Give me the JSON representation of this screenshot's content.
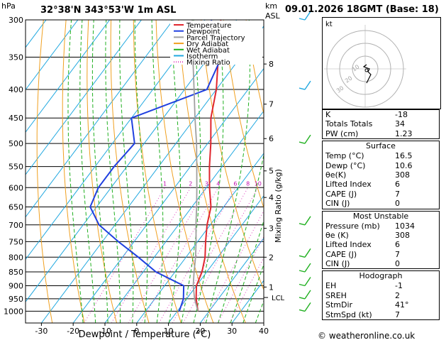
{
  "header": {
    "pressure_unit": "hPa",
    "location": "32°38'N  343°53'W  1m  ASL",
    "height_unit_1": "km",
    "height_unit_2": "ASL",
    "datetime": "09.01.2026 18GMT (Base: 18)"
  },
  "legend": [
    {
      "label": "Temperature",
      "color": "#e0262e",
      "style": "solid"
    },
    {
      "label": "Dewpoint",
      "color": "#2040e0",
      "style": "solid"
    },
    {
      "label": "Parcel Trajectory",
      "color": "#a0a0a0",
      "style": "solid"
    },
    {
      "label": "Dry Adiabat",
      "color": "#f0a020",
      "style": "solid"
    },
    {
      "label": "Wet Adiabat",
      "color": "#20b020",
      "style": "solid"
    },
    {
      "label": "Isotherm",
      "color": "#20a8e0",
      "style": "solid"
    },
    {
      "label": "Mixing Ratio",
      "color": "#e040c0",
      "style": "dotted"
    }
  ],
  "chart_data": {
    "type": "line",
    "title": "",
    "xlabel": "Dewpoint / Temperature (°C)",
    "ylabel": "hPa",
    "xlim": [
      -35,
      40
    ],
    "ylim": [
      1050,
      300
    ],
    "yscale": "log",
    "x_ticks": [
      -30,
      -20,
      -10,
      0,
      10,
      20,
      30,
      40
    ],
    "pressure_levels": [
      300,
      350,
      400,
      450,
      500,
      550,
      600,
      650,
      700,
      750,
      800,
      850,
      900,
      950,
      1000
    ],
    "height_axis_label": "km ASL",
    "height_ticks": [
      {
        "label": "8",
        "pressure": 360
      },
      {
        "label": "7",
        "pressure": 425
      },
      {
        "label": "6",
        "pressure": 490
      },
      {
        "label": "5",
        "pressure": 560
      },
      {
        "label": "4",
        "pressure": 625
      },
      {
        "label": "3",
        "pressure": 710
      },
      {
        "label": "2",
        "pressure": 800
      },
      {
        "label": "1",
        "pressure": 905
      }
    ],
    "lcl_label": "LCL",
    "lcl_pressure": 945,
    "mixing_ratio_axis_label": "Mixing Ratio (g/kg)",
    "mixing_ratio_labels": [
      "1",
      "2",
      "3",
      "4",
      "6",
      "8",
      "10",
      "15",
      "20",
      "25"
    ],
    "series": [
      {
        "name": "Temperature",
        "points": [
          [
            1000,
            16.5
          ],
          [
            950,
            13
          ],
          [
            900,
            10
          ],
          [
            850,
            8.5
          ],
          [
            800,
            6
          ],
          [
            750,
            2.5
          ],
          [
            700,
            -1
          ],
          [
            650,
            -4
          ],
          [
            600,
            -9
          ],
          [
            550,
            -14
          ],
          [
            500,
            -19
          ],
          [
            450,
            -25
          ],
          [
            400,
            -30
          ],
          [
            350,
            -37
          ],
          [
            300,
            -45
          ]
        ]
      },
      {
        "name": "Dewpoint",
        "points": [
          [
            1000,
            10.6
          ],
          [
            950,
            9
          ],
          [
            900,
            6
          ],
          [
            850,
            -6
          ],
          [
            800,
            -15
          ],
          [
            750,
            -25
          ],
          [
            700,
            -35
          ],
          [
            650,
            -42
          ],
          [
            600,
            -44
          ],
          [
            550,
            -44
          ],
          [
            500,
            -43
          ],
          [
            450,
            -50
          ],
          [
            400,
            -33
          ],
          [
            350,
            -36
          ],
          [
            300,
            -48
          ]
        ]
      },
      {
        "name": "Parcel Trajectory",
        "points": [
          [
            1000,
            16.5
          ],
          [
            950,
            12.5
          ],
          [
            900,
            9
          ],
          [
            850,
            6
          ],
          [
            800,
            3
          ],
          [
            750,
            -0.5
          ],
          [
            700,
            -4.5
          ],
          [
            650,
            -8.5
          ],
          [
            600,
            -13
          ],
          [
            550,
            -18
          ],
          [
            500,
            -23.5
          ],
          [
            450,
            -30
          ],
          [
            400,
            -37
          ],
          [
            350,
            -45
          ],
          [
            300,
            -54
          ]
        ]
      }
    ]
  },
  "hodograph": {
    "label": "kt",
    "ring_labels": [
      "10",
      "20",
      "30"
    ]
  },
  "indices": {
    "rows": [
      {
        "key": "K",
        "value": "-18"
      },
      {
        "key": "Totals Totals",
        "value": "34"
      },
      {
        "key": "PW (cm)",
        "value": "1.23"
      }
    ]
  },
  "surface": {
    "title": "Surface",
    "rows": [
      {
        "key": "Temp (°C)",
        "value": "16.5"
      },
      {
        "key": "Dewp (°C)",
        "value": "10.6"
      },
      {
        "key": "θe(K)",
        "value": "308"
      },
      {
        "key": "Lifted Index",
        "value": "6"
      },
      {
        "key": "CAPE (J)",
        "value": "7"
      },
      {
        "key": "CIN (J)",
        "value": "0"
      }
    ]
  },
  "most_unstable": {
    "title": "Most Unstable",
    "rows": [
      {
        "key": "Pressure (mb)",
        "value": "1034"
      },
      {
        "key": "θe (K)",
        "value": "308"
      },
      {
        "key": "Lifted Index",
        "value": "6"
      },
      {
        "key": "CAPE (J)",
        "value": "7"
      },
      {
        "key": "CIN (J)",
        "value": "0"
      }
    ]
  },
  "hodograph_table": {
    "title": "Hodograph",
    "rows": [
      {
        "key": "EH",
        "value": "-1"
      },
      {
        "key": "SREH",
        "value": "2"
      },
      {
        "key": "StmDir",
        "value": "41°"
      },
      {
        "key": "StmSpd (kt)",
        "value": "7"
      }
    ]
  },
  "footer": "© weatheronline.co.uk"
}
